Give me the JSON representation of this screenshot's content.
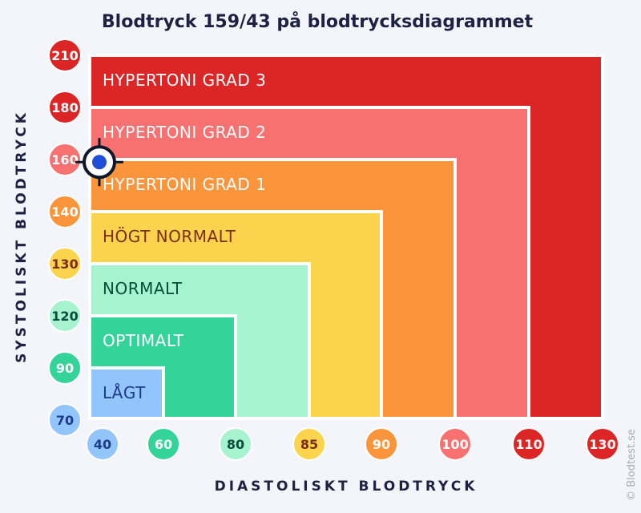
{
  "chart_data": {
    "type": "bar",
    "title": "Blodtryck 159/43 på blodtrycksdiagrammet",
    "xlabel": "DIASTOLISKT BLODTRYCK",
    "ylabel": "SYSTOLISKT BLODTRYCK",
    "x_ticks": [
      "40",
      "60",
      "80",
      "85",
      "90",
      "100",
      "110",
      "130"
    ],
    "y_ticks": [
      "70",
      "90",
      "120",
      "130",
      "140",
      "160",
      "180",
      "210"
    ],
    "zones": [
      {
        "label": "HYPERTONI GRAD 3",
        "color": "#dc2626",
        "text_color": "#ffffff",
        "diastolic_max": "130",
        "systolic_max": "210"
      },
      {
        "label": "HYPERTONI GRAD 2",
        "color": "#f87171",
        "text_color": "#ffffff",
        "diastolic_max": "110",
        "systolic_max": "180"
      },
      {
        "label": "HYPERTONI GRAD 1",
        "color": "#fb953c",
        "text_color": "#ffffff",
        "diastolic_max": "100",
        "systolic_max": "160"
      },
      {
        "label": "HÖGT NORMALT",
        "color": "#fcd34d",
        "text_color": "#7c2d12",
        "diastolic_max": "90",
        "systolic_max": "140"
      },
      {
        "label": "NORMALT",
        "color": "#a7f3d0",
        "text_color": "#064e3b",
        "diastolic_max": "85",
        "systolic_max": "130"
      },
      {
        "label": "OPTIMALT",
        "color": "#34d399",
        "text_color": "#ffffff",
        "diastolic_max": "80",
        "systolic_max": "120"
      },
      {
        "label": "LÅGT",
        "color": "#93c5fd",
        "text_color": "#1e3a8a",
        "diastolic_max": "60",
        "systolic_max": "90"
      }
    ],
    "x_tick_colors": [
      {
        "fill": "#93c5fd",
        "text": "#1e3a8a"
      },
      {
        "fill": "#34d399",
        "text": "#ffffff"
      },
      {
        "fill": "#a7f3d0",
        "text": "#064e3b"
      },
      {
        "fill": "#fcd34d",
        "text": "#7c2d12"
      },
      {
        "fill": "#fb953c",
        "text": "#ffffff"
      },
      {
        "fill": "#f87171",
        "text": "#ffffff"
      },
      {
        "fill": "#dc2626",
        "text": "#ffffff"
      },
      {
        "fill": "#dc2626",
        "text": "#ffffff"
      }
    ],
    "y_tick_colors": [
      {
        "fill": "#93c5fd",
        "text": "#1e3a8a"
      },
      {
        "fill": "#34d399",
        "text": "#ffffff"
      },
      {
        "fill": "#a7f3d0",
        "text": "#064e3b"
      },
      {
        "fill": "#fcd34d",
        "text": "#7c2d12"
      },
      {
        "fill": "#fb953c",
        "text": "#ffffff"
      },
      {
        "fill": "#f87171",
        "text": "#ffffff"
      },
      {
        "fill": "#dc2626",
        "text": "#ffffff"
      },
      {
        "fill": "#dc2626",
        "text": "#ffffff"
      }
    ],
    "marker": {
      "systolic": 159,
      "diastolic": 43,
      "color": "#1d4ed8"
    }
  },
  "credit": "© Blodtest.se"
}
